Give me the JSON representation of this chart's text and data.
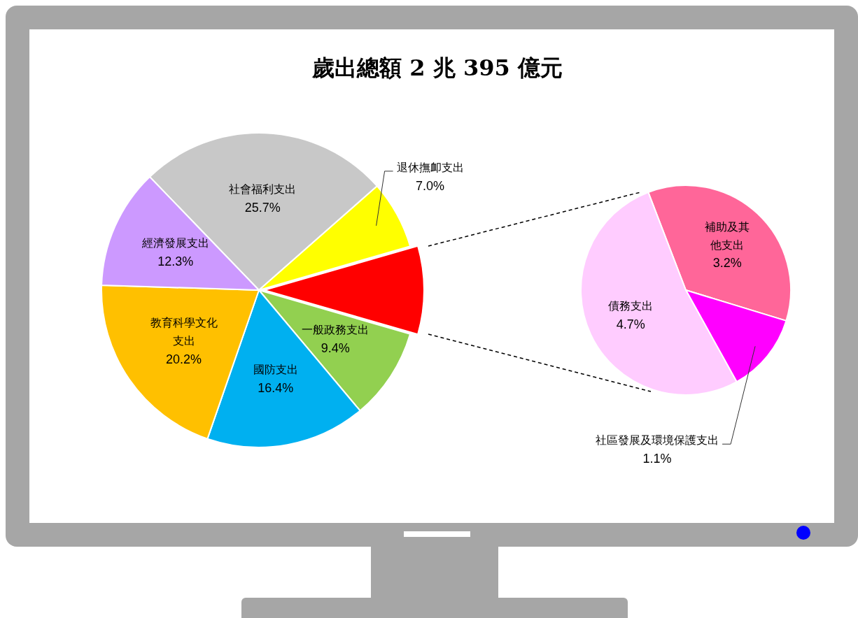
{
  "chart_data": [
    {
      "type": "pie",
      "title": "歲出總額 2 兆 395 億元",
      "categories": [
        "社會福利支出",
        "退休撫卹支出",
        null,
        "一般政務支出",
        "國防支出",
        "教育科學文化支出",
        "經濟發展支出"
      ],
      "values": [
        25.7,
        7.0,
        9.0,
        9.4,
        16.4,
        20.2,
        12.3
      ],
      "colors": [
        "#c8c8c8",
        "#ffff00",
        "#ff0000",
        "#92d050",
        "#00b0f0",
        "#ffc000",
        "#cc99ff"
      ],
      "value_labels": [
        "25.7%",
        "7.0%",
        null,
        "9.4%",
        "16.4%",
        "20.2%",
        "12.3%"
      ]
    },
    {
      "type": "pie",
      "categories": [
        "補助及其他支出",
        "社區發展及環境保護支出",
        "債務支出"
      ],
      "values": [
        3.2,
        1.1,
        4.7
      ],
      "colors": [
        "#ff6699",
        "#ff00ff",
        "#ffccff"
      ],
      "value_labels": [
        "3.2%",
        "1.1%",
        "4.7%"
      ]
    }
  ]
}
